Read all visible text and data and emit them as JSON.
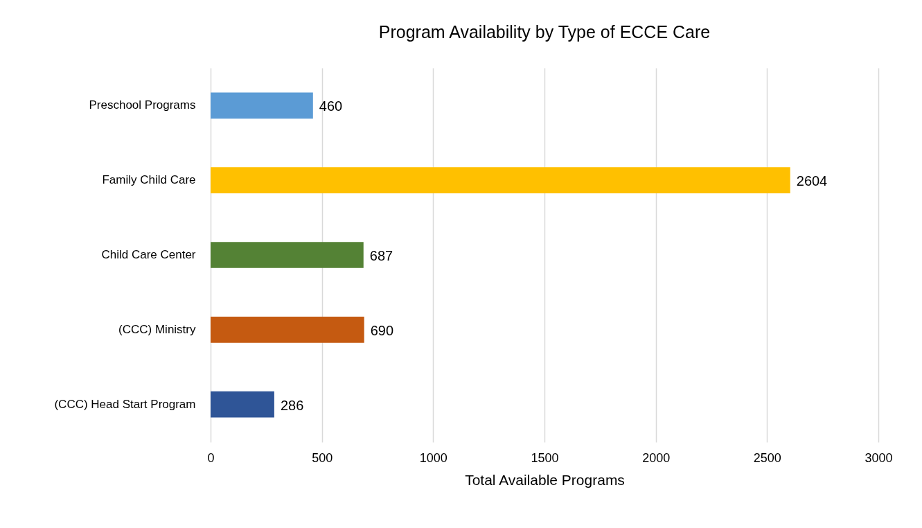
{
  "chart_data": {
    "type": "bar",
    "orientation": "horizontal",
    "title": "Program Availability by Type of ECCE Care",
    "xlabel": "Total Available Programs",
    "categories": [
      "Preschool Programs",
      "Family Child Care",
      "Child Care Center",
      "(CCC) Ministry",
      "(CCC) Head Start Program"
    ],
    "values": [
      460,
      2604,
      687,
      690,
      286
    ],
    "colors": [
      "#5b9bd5",
      "#ffc000",
      "#548235",
      "#c55a11",
      "#2f5597"
    ],
    "xlim": [
      0,
      3000
    ],
    "xticks": [
      0,
      500,
      1000,
      1500,
      2000,
      2500,
      3000
    ],
    "grid": "x",
    "data_labels": true,
    "legend": false
  }
}
